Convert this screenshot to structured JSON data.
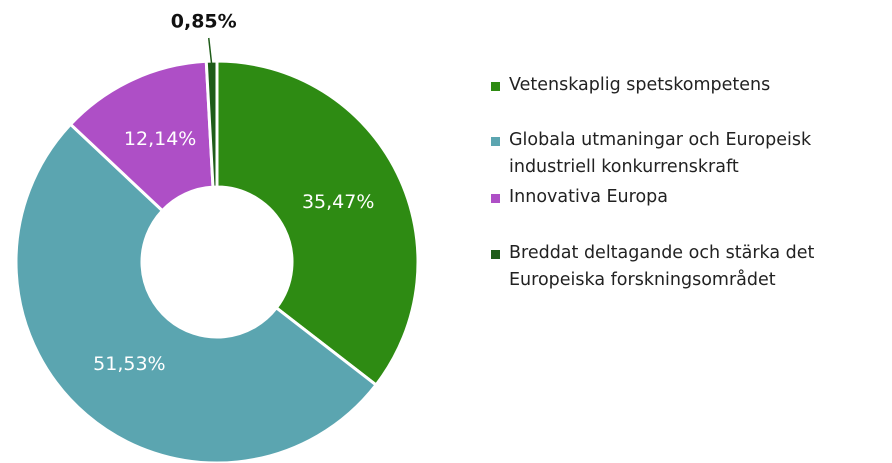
{
  "chart_data": {
    "type": "donut",
    "categories": [
      "Vetenskaplig spetskompetens",
      "Globala utmaningar och Europeisk industriell konkurrenskraft",
      "Innovativa Europa",
      "Breddat deltagande och stärka det Europeiska forskningsområdet"
    ],
    "values": [
      35.47,
      51.53,
      12.14,
      0.85
    ],
    "value_labels": [
      "35,47%",
      "51,53%",
      "12,14%",
      "0,85%"
    ],
    "colors": [
      "#2e8b13",
      "#5ba5b0",
      "#ae4fc6",
      "#1e5c19"
    ],
    "legend": "right"
  }
}
